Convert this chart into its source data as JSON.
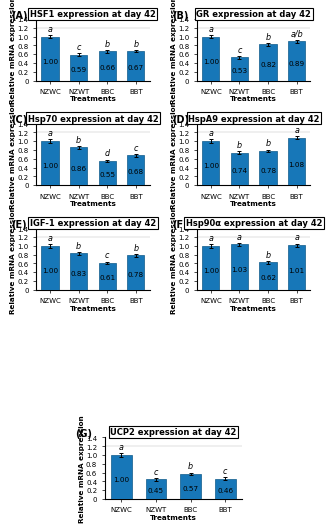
{
  "panels": [
    {
      "label": "(A)",
      "title": "HSF1 expression at day 42",
      "values": [
        1.0,
        0.59,
        0.66,
        0.67
      ],
      "errors": [
        0.04,
        0.03,
        0.03,
        0.03
      ],
      "letters": [
        "a",
        "c",
        "b",
        "b"
      ],
      "ylim": [
        0,
        1.4
      ],
      "yticks": [
        0,
        0.2,
        0.4,
        0.6,
        0.8,
        1.0,
        1.2,
        1.4
      ]
    },
    {
      "label": "(B)",
      "title": "GR expression at day 42",
      "values": [
        1.0,
        0.53,
        0.82,
        0.89
      ],
      "errors": [
        0.04,
        0.03,
        0.03,
        0.03
      ],
      "letters": [
        "a",
        "c",
        "b",
        "a/b"
      ],
      "ylim": [
        0,
        1.4
      ],
      "yticks": [
        0,
        0.2,
        0.4,
        0.6,
        0.8,
        1.0,
        1.2,
        1.4
      ]
    },
    {
      "label": "(C)",
      "title": "Hsp70 expression at day 42",
      "values": [
        1.0,
        0.86,
        0.55,
        0.68
      ],
      "errors": [
        0.04,
        0.03,
        0.03,
        0.03
      ],
      "letters": [
        "a",
        "b",
        "d",
        "c"
      ],
      "ylim": [
        0,
        1.4
      ],
      "yticks": [
        0,
        0.2,
        0.4,
        0.6,
        0.8,
        1.0,
        1.2,
        1.4
      ]
    },
    {
      "label": "(D)",
      "title": "HspA9 expression at day 42",
      "values": [
        1.0,
        0.74,
        0.78,
        1.08
      ],
      "errors": [
        0.04,
        0.03,
        0.03,
        0.04
      ],
      "letters": [
        "a",
        "b",
        "b",
        "a"
      ],
      "ylim": [
        0,
        1.4
      ],
      "yticks": [
        0,
        0.2,
        0.4,
        0.6,
        0.8,
        1.0,
        1.2,
        1.4
      ]
    },
    {
      "label": "(E)",
      "title": "IGF-1 expression at day 42",
      "values": [
        1.0,
        0.83,
        0.61,
        0.78
      ],
      "errors": [
        0.04,
        0.03,
        0.03,
        0.03
      ],
      "letters": [
        "a",
        "b",
        "c",
        "b"
      ],
      "ylim": [
        0,
        1.4
      ],
      "yticks": [
        0,
        0.2,
        0.4,
        0.6,
        0.8,
        1.0,
        1.2,
        1.4
      ]
    },
    {
      "label": "(F)",
      "title": "Hsp90α expression at day 42",
      "values": [
        1.0,
        1.03,
        0.62,
        1.01
      ],
      "errors": [
        0.04,
        0.04,
        0.03,
        0.04
      ],
      "letters": [
        "a",
        "a",
        "b",
        "a"
      ],
      "ylim": [
        0,
        1.4
      ],
      "yticks": [
        0,
        0.2,
        0.4,
        0.6,
        0.8,
        1.0,
        1.2,
        1.4
      ]
    },
    {
      "label": "(G)",
      "title": "UCP2 expression at day 42",
      "values": [
        1.0,
        0.45,
        0.57,
        0.46
      ],
      "errors": [
        0.05,
        0.03,
        0.03,
        0.03
      ],
      "letters": [
        "a",
        "c",
        "b",
        "c"
      ],
      "ylim": [
        0,
        1.4
      ],
      "yticks": [
        0,
        0.2,
        0.4,
        0.6,
        0.8,
        1.0,
        1.2,
        1.4
      ]
    }
  ],
  "categories": [
    "NZWC",
    "NZWT",
    "BBC",
    "BBT"
  ],
  "xlabel": "Treatments",
  "ylabel": "Relative mRNA expression",
  "bar_color": "#1777b8",
  "bar_edge_color": "#0f5a8a",
  "title_fontsize": 6.0,
  "tick_fontsize": 5.0,
  "label_fontsize": 5.2,
  "value_fontsize": 5.2,
  "letter_fontsize": 5.8,
  "panel_label_fontsize": 7.0
}
